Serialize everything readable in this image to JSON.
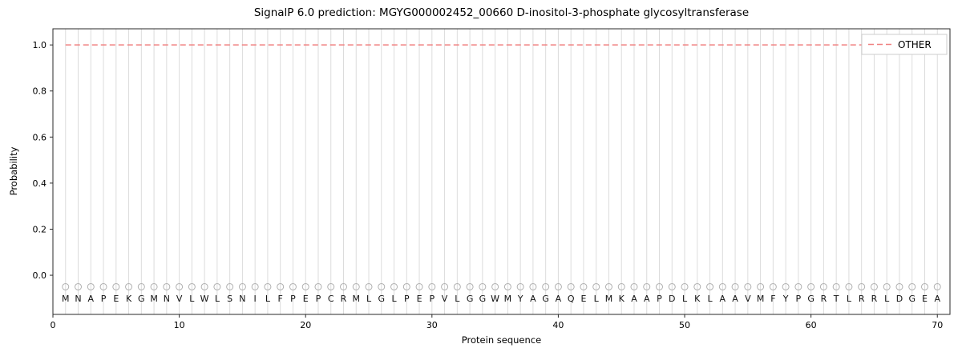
{
  "chart_data": {
    "type": "line",
    "title": "SignalP 6.0 prediction: MGYG000002452_00660 D-inositol-3-phosphate glycosyltransferase",
    "xlabel": "Protein sequence",
    "ylabel": "Probability",
    "xlim": [
      0,
      71
    ],
    "ylim": [
      -0.17,
      1.07
    ],
    "x_ticks": [
      0,
      10,
      20,
      30,
      40,
      50,
      60,
      70
    ],
    "y_ticks": [
      0.0,
      0.2,
      0.4,
      0.6,
      0.8,
      1.0
    ],
    "grid": "vertical line at every residue position",
    "colors": {
      "other_line": "#f08080",
      "gridline": "#dcdcdc",
      "marker": "#b0b0b0",
      "frame": "#2a2a2a",
      "legend_border": "#cccccc"
    },
    "legend": {
      "position": "top-right",
      "entries": [
        {
          "label": "OTHER",
          "style": "dashed",
          "color": "#f08080"
        }
      ]
    },
    "series": [
      {
        "name": "OTHER",
        "style": "dashed",
        "color": "#f08080",
        "value": 1.0,
        "x_start": 1,
        "x_end": 70
      }
    ],
    "sequence": [
      "M",
      "N",
      "A",
      "P",
      "E",
      "K",
      "G",
      "M",
      "N",
      "V",
      "L",
      "W",
      "L",
      "S",
      "N",
      "I",
      "L",
      "F",
      "P",
      "E",
      "P",
      "C",
      "R",
      "M",
      "L",
      "G",
      "L",
      "P",
      "E",
      "P",
      "V",
      "L",
      "G",
      "G",
      "W",
      "M",
      "Y",
      "A",
      "G",
      "A",
      "Q",
      "E",
      "L",
      "M",
      "K",
      "A",
      "A",
      "P",
      "D",
      "L",
      "K",
      "L",
      "A",
      "A",
      "V",
      "M",
      "F",
      "Y",
      "P",
      "G",
      "R",
      "T",
      "L",
      "R",
      "R",
      "L",
      "D",
      "G",
      "E",
      "A"
    ],
    "marker": {
      "shape": "open-circle",
      "y": -0.05,
      "letter_y": -0.1
    }
  }
}
